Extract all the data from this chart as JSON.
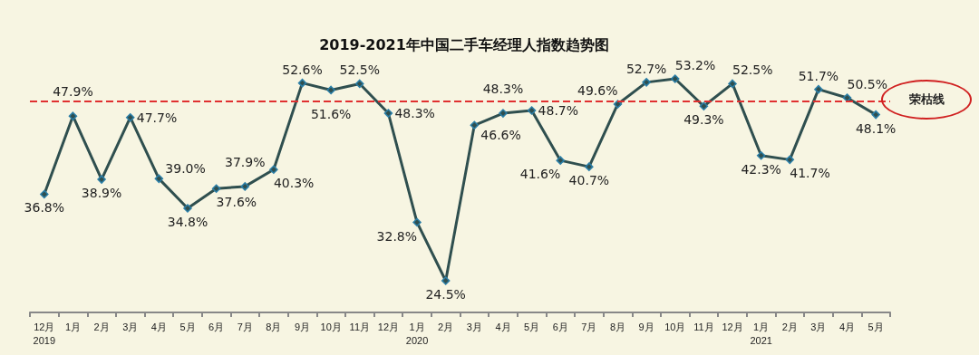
{
  "chart_data": {
    "type": "line",
    "title": "2019-2021年中国二手车经理人指数趋势图",
    "categories": [
      "12月\n2019",
      "1月",
      "2月",
      "3月",
      "4月",
      "5月",
      "6月",
      "7月",
      "8月",
      "9月",
      "10月",
      "11月",
      "12月",
      "1月\n2020",
      "2月",
      "3月",
      "4月",
      "5月",
      "6月",
      "7月",
      "8月",
      "9月",
      "10月",
      "11月",
      "12月",
      "1月\n2021",
      "2月",
      "3月",
      "4月",
      "5月"
    ],
    "series": [
      {
        "color": "#2f4f4f",
        "values": [
          36.8,
          47.9,
          38.9,
          47.7,
          39.0,
          34.8,
          37.6,
          37.9,
          40.3,
          52.6,
          51.6,
          52.5,
          48.3,
          32.8,
          24.5,
          46.6,
          48.3,
          48.7,
          41.6,
          40.7,
          49.6,
          52.7,
          53.2,
          49.3,
          52.5,
          42.3,
          41.7,
          51.7,
          50.5,
          48.1
        ],
        "value_labels": [
          "36.8%",
          "47.9%",
          "38.9%",
          "47.7%",
          "39.0%",
          "34.8%",
          "37.6%",
          "37.9%",
          "40.3%",
          "52.6%",
          "51.6%",
          "52.5%",
          "48.3%",
          "32.8%",
          "24.5%",
          "46.6%",
          "48.3%",
          "48.7%",
          "41.6%",
          "40.7%",
          "49.6%",
          "52.7%",
          "53.2%",
          "49.3%",
          "52.5%",
          "42.3%",
          "41.7%",
          "51.7%",
          "50.5%",
          "48.1%"
        ]
      }
    ],
    "tick_labels": "x",
    "grid": false,
    "marker": "diamond",
    "line_style": "solid",
    "ref_lines": [
      {
        "axis": "y",
        "value": 50,
        "label": "荣枯线",
        "color": "#e03030",
        "line_style": "dashed"
      }
    ]
  }
}
